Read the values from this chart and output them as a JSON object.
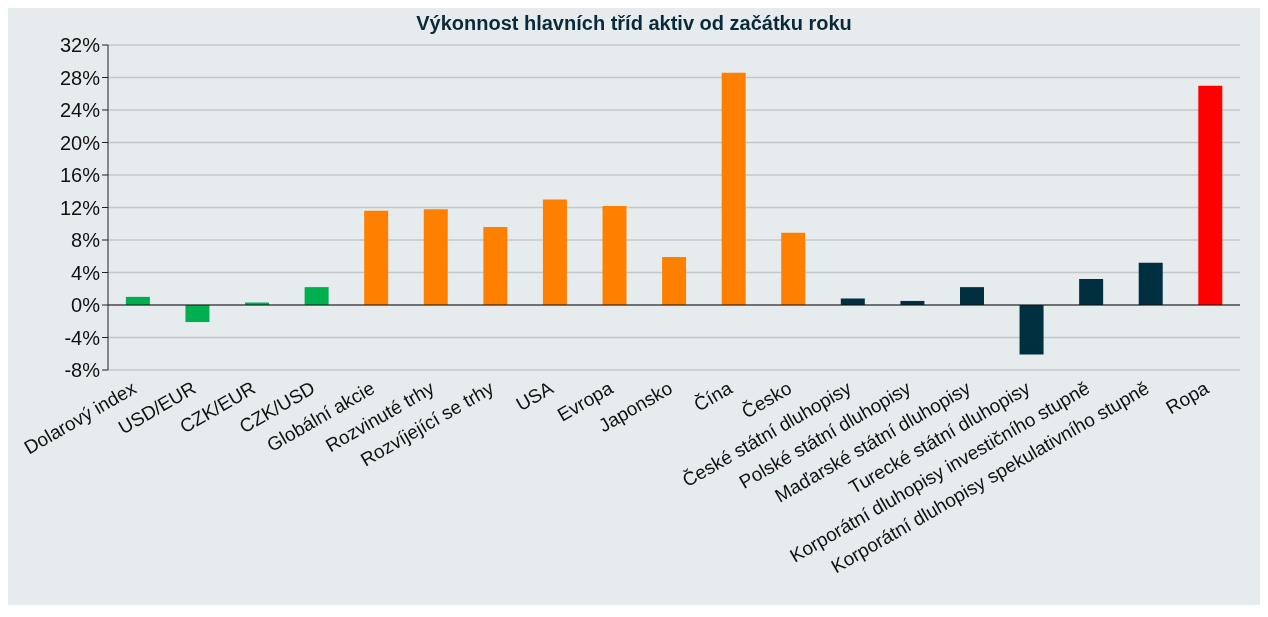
{
  "chart_data": {
    "type": "bar",
    "title": "Výkonnost hlavních tříd aktiv od začátku roku",
    "categories": [
      "Dolarový index",
      "USD/EUR",
      "CZK/EUR",
      "CZK/USD",
      "Globální akcie",
      "Rozvinuté trhy",
      "Rozvíjející se trhy",
      "USA",
      "Evropa",
      "Japonsko",
      "Čína",
      "Česko",
      "České státní dluhopisy",
      "Polské státní dluhopisy",
      "Maďarské státní dluhopisy",
      "Turecké státní dluhopisy",
      "Korporátní dluhopisy investičního stupně",
      "Korporátní dluhopisy spekulativního stupně",
      "Ropa"
    ],
    "values": [
      1.0,
      -2.1,
      0.3,
      2.2,
      11.6,
      11.8,
      9.6,
      13.0,
      12.2,
      5.9,
      28.6,
      8.9,
      0.8,
      0.5,
      2.2,
      -6.1,
      3.2,
      5.2,
      27.0
    ],
    "colors": [
      "#00b050",
      "#00b050",
      "#00b050",
      "#00b050",
      "#ff8000",
      "#ff8000",
      "#ff8000",
      "#ff8000",
      "#ff8000",
      "#ff8000",
      "#ff8000",
      "#ff8000",
      "#003040",
      "#003040",
      "#003040",
      "#003040",
      "#003040",
      "#003040",
      "#ff0000"
    ],
    "ylim": [
      -8,
      32
    ],
    "yticks": [
      {
        "value": -8,
        "label": "-8%"
      },
      {
        "value": -4,
        "label": "-4%"
      },
      {
        "value": 0,
        "label": "0%"
      },
      {
        "value": 4,
        "label": "4%"
      },
      {
        "value": 8,
        "label": "8%"
      },
      {
        "value": 12,
        "label": "12%"
      },
      {
        "value": 16,
        "label": "16%"
      },
      {
        "value": 20,
        "label": "20%"
      },
      {
        "value": 24,
        "label": "24%"
      },
      {
        "value": 28,
        "label": "28%"
      },
      {
        "value": 32,
        "label": "32%"
      }
    ],
    "grid": "y"
  }
}
